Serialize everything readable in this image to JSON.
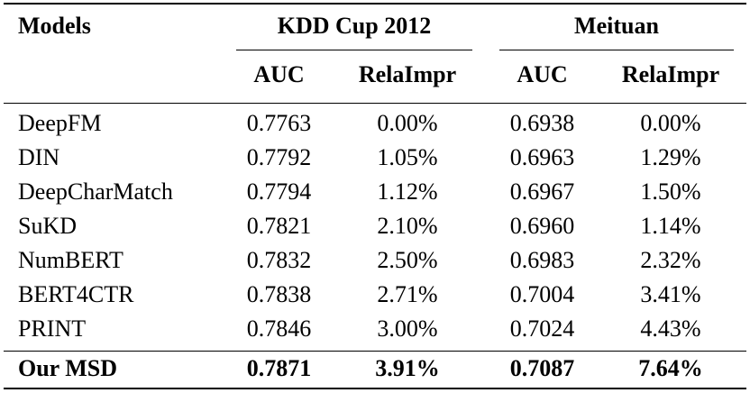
{
  "table": {
    "header": {
      "models": "Models",
      "group_kdd": "KDD Cup 2012",
      "group_meituan": "Meituan",
      "sub_auc_1": "AUC",
      "sub_rela_1": "RelaImpr",
      "sub_auc_2": "AUC",
      "sub_rela_2": "RelaImpr"
    },
    "rows": [
      {
        "model": "DeepFM",
        "kdd_auc": "0.7763",
        "kdd_rela": "0.00%",
        "mt_auc": "0.6938",
        "mt_rela": "0.00%"
      },
      {
        "model": "DIN",
        "kdd_auc": "0.7792",
        "kdd_rela": "1.05%",
        "mt_auc": "0.6963",
        "mt_rela": "1.29%"
      },
      {
        "model": "DeepCharMatch",
        "kdd_auc": "0.7794",
        "kdd_rela": "1.12%",
        "mt_auc": "0.6967",
        "mt_rela": "1.50%"
      },
      {
        "model": "SuKD",
        "kdd_auc": "0.7821",
        "kdd_rela": "2.10%",
        "mt_auc": "0.6960",
        "mt_rela": "1.14%"
      },
      {
        "model": "NumBERT",
        "kdd_auc": "0.7832",
        "kdd_rela": "2.50%",
        "mt_auc": "0.6983",
        "mt_rela": "2.32%"
      },
      {
        "model": "BERT4CTR",
        "kdd_auc": "0.7838",
        "kdd_rela": "2.71%",
        "mt_auc": "0.7004",
        "mt_rela": "3.41%"
      },
      {
        "model": "PRINT",
        "kdd_auc": "0.7846",
        "kdd_rela": "3.00%",
        "mt_auc": "0.7024",
        "mt_rela": "4.43%"
      }
    ],
    "best_row": {
      "model": "Our MSD",
      "kdd_auc": "0.7871",
      "kdd_rela": "3.91%",
      "mt_auc": "0.7087",
      "mt_rela": "7.64%"
    }
  }
}
